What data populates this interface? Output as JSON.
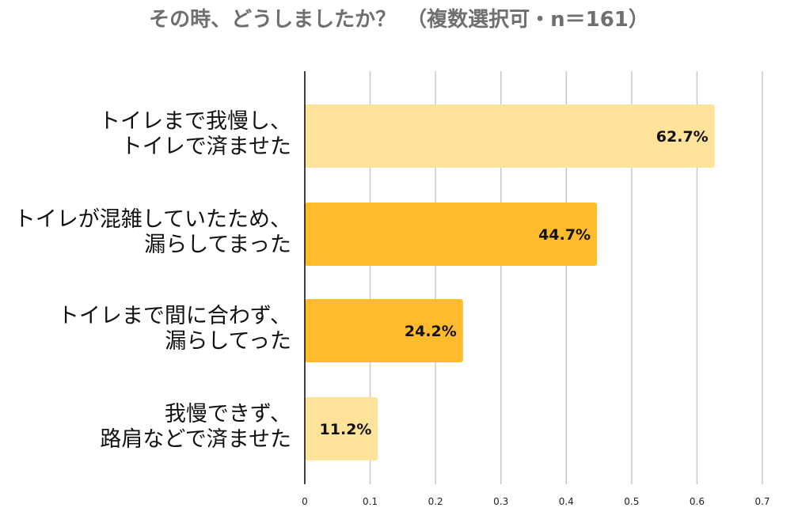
{
  "chart_data": {
    "type": "bar",
    "orientation": "horizontal",
    "title": "その時、どうしましたか？　（複数選択可・n＝161）",
    "categories": [
      [
        "トイレまで我慢し、",
        "トイレで済ませた"
      ],
      [
        "トイレが混雑していたため、",
        "漏らしてまった"
      ],
      [
        "トイレまで間に合わず、",
        "漏らしてった"
      ],
      [
        "我慢できず、",
        "路肩などで済ませた"
      ]
    ],
    "values": [
      0.627,
      0.447,
      0.242,
      0.112
    ],
    "data_labels": [
      "62.7%",
      "44.7%",
      "24.2%",
      "11.2%"
    ],
    "bar_colors": [
      "#FFE39A",
      "#FFBB2C",
      "#FFBB2C",
      "#FFE39A"
    ],
    "xlim": [
      0,
      0.7
    ],
    "x_ticks": [
      0,
      0.1,
      0.2,
      0.3,
      0.4,
      0.5,
      0.6,
      0.7
    ],
    "x_tick_labels": [
      "0",
      "0.1",
      "0.2",
      "0.3",
      "0.4",
      "0.5",
      "0.6",
      "0.7"
    ],
    "grid": true,
    "grid_color": "#c8c8c8",
    "title_color": "#6f6f6f"
  }
}
